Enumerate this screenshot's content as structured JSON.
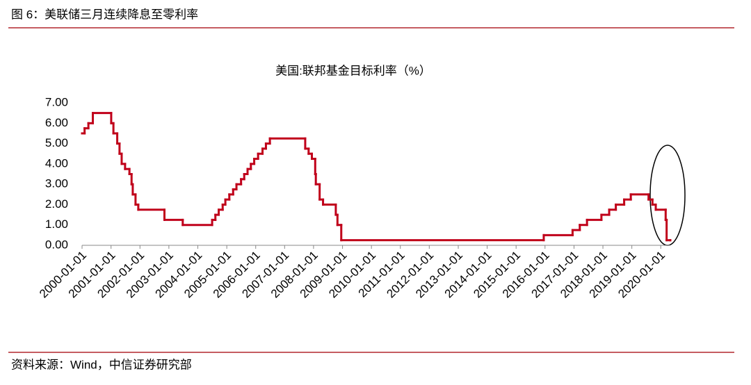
{
  "header": {
    "title": "图 6：美联储三月连续降息至零利率"
  },
  "footer": {
    "source": "资料来源：Wind，中信证券研究部"
  },
  "chart_data": {
    "type": "step-line",
    "title": "美国:联邦基金目标利率（%）",
    "x": [
      "2000-01-01",
      "2000-02-02",
      "2000-03-21",
      "2000-05-16",
      "2001-01-03",
      "2001-01-31",
      "2001-03-20",
      "2001-04-18",
      "2001-05-15",
      "2001-06-27",
      "2001-08-21",
      "2001-09-17",
      "2001-10-02",
      "2001-11-06",
      "2001-12-11",
      "2002-11-06",
      "2003-06-25",
      "2004-06-30",
      "2004-08-10",
      "2004-09-21",
      "2004-11-10",
      "2004-12-14",
      "2005-02-02",
      "2005-03-22",
      "2005-05-03",
      "2005-06-30",
      "2005-08-09",
      "2005-09-20",
      "2005-11-01",
      "2005-12-13",
      "2006-01-31",
      "2006-03-28",
      "2006-05-10",
      "2006-06-29",
      "2007-09-18",
      "2007-10-31",
      "2007-12-11",
      "2008-01-22",
      "2008-01-30",
      "2008-03-18",
      "2008-04-30",
      "2008-10-08",
      "2008-10-29",
      "2008-12-16",
      "2015-12-16",
      "2016-12-14",
      "2017-03-15",
      "2017-06-14",
      "2017-12-13",
      "2018-03-21",
      "2018-06-13",
      "2018-09-26",
      "2018-12-19",
      "2019-07-31",
      "2019-09-18",
      "2019-10-30",
      "2020-03-03",
      "2020-03-15",
      "2020-05-01"
    ],
    "series": [
      {
        "name": "美国:联邦基金目标利率",
        "color": "#c0001a",
        "values": [
          5.5,
          5.75,
          6.0,
          6.5,
          6.0,
          5.5,
          5.0,
          4.5,
          4.0,
          3.75,
          3.5,
          3.0,
          2.5,
          2.0,
          1.75,
          1.25,
          1.0,
          1.25,
          1.5,
          1.75,
          2.0,
          2.25,
          2.5,
          2.75,
          3.0,
          3.25,
          3.5,
          3.75,
          4.0,
          4.25,
          4.5,
          4.75,
          5.0,
          5.25,
          4.75,
          4.5,
          4.25,
          3.5,
          3.0,
          2.25,
          2.0,
          1.5,
          1.0,
          0.25,
          0.5,
          0.75,
          1.0,
          1.25,
          1.5,
          1.75,
          2.0,
          2.25,
          2.5,
          2.25,
          2.0,
          1.75,
          1.25,
          0.25,
          0.25
        ]
      }
    ],
    "xlim": [
      "2000-01-01",
      "2020-05-01"
    ],
    "xticks": [
      "2000-01-01",
      "2001-01-01",
      "2002-01-01",
      "2003-01-01",
      "2004-01-01",
      "2005-01-01",
      "2006-01-01",
      "2007-01-01",
      "2008-01-01",
      "2009-01-01",
      "2010-01-01",
      "2011-01-01",
      "2012-01-01",
      "2013-01-01",
      "2014-01-01",
      "2015-01-01",
      "2016-01-01",
      "2017-01-01",
      "2018-01-01",
      "2019-01-01",
      "2020-01-01"
    ],
    "ylim": [
      0,
      7
    ],
    "yticks": [
      {
        "value": 0,
        "label": "0.00"
      },
      {
        "value": 1,
        "label": "1.00"
      },
      {
        "value": 2,
        "label": "2.00"
      },
      {
        "value": 3,
        "label": "3.00"
      },
      {
        "value": 4,
        "label": "4.00"
      },
      {
        "value": 5,
        "label": "5.00"
      },
      {
        "value": 6,
        "label": "6.00"
      },
      {
        "value": 7,
        "label": "7.00"
      }
    ],
    "grid": false
  }
}
